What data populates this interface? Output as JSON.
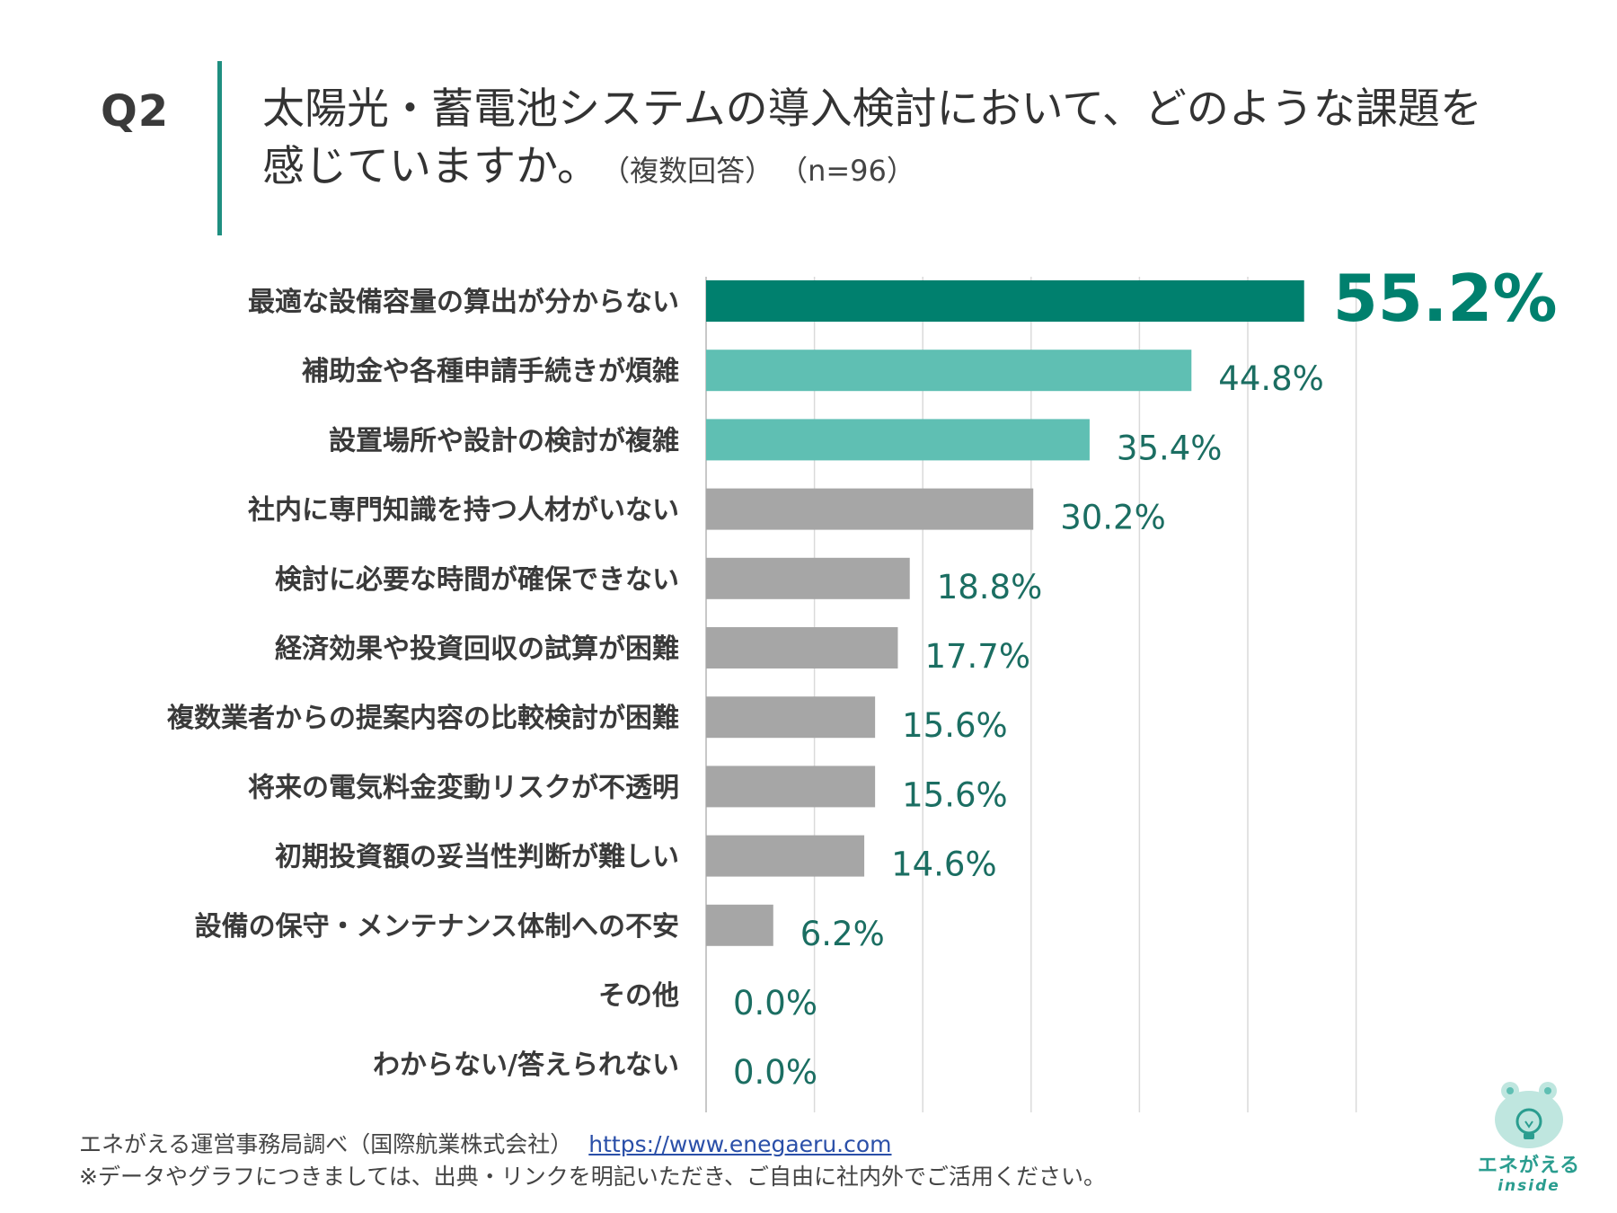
{
  "header": {
    "q_label": "Q2",
    "title_line1": "太陽光・蓄電池システムの導入検討において、どのような課題を",
    "title_line2": "感じていますか。",
    "note_multi": "（複数回答）",
    "note_n": "（n=96）"
  },
  "colors": {
    "top": "#00806e",
    "second": "#5fbfb3",
    "rest": "#a6a6a6"
  },
  "chart_data": {
    "type": "bar",
    "orientation": "horizontal",
    "unit": "%",
    "xlim": [
      0,
      60
    ],
    "grid": true,
    "categories": [
      "最適な設備容量の算出が分からない",
      "補助金や各種申請手続きが煩雑",
      "設置場所や設計の検討が複雑",
      "社内に専門知識を持つ人材がいない",
      "検討に必要な時間が確保できない",
      "経済効果や投資回収の試算が困難",
      "複数業者からの提案内容の比較検討が困難",
      "将来の電気料金変動リスクが不透明",
      "初期投資額の妥当性判断が難しい",
      "設備の保守・メンテナンス体制への不安",
      "その他",
      "わからない/答えられない"
    ],
    "values": [
      55.2,
      44.8,
      35.4,
      30.2,
      18.8,
      17.7,
      15.6,
      15.6,
      14.6,
      6.2,
      0.0,
      0.0
    ],
    "value_labels": [
      "55.2%",
      "44.8%",
      "35.4%",
      "30.2%",
      "18.8%",
      "17.7%",
      "15.6%",
      "15.6%",
      "14.6%",
      "6.2%",
      "0.0%",
      "0.0%"
    ]
  },
  "footer": {
    "source": "エネがえる運営事務局調べ（国際航業株式会社）",
    "url": "https://www.enegaeru.com",
    "note": "※データやグラフにつきましては、出典・リンクを明記いただき、ご自由に社内外でご活用ください。"
  },
  "logo": {
    "name": "エネがえる",
    "sub": "inside"
  }
}
